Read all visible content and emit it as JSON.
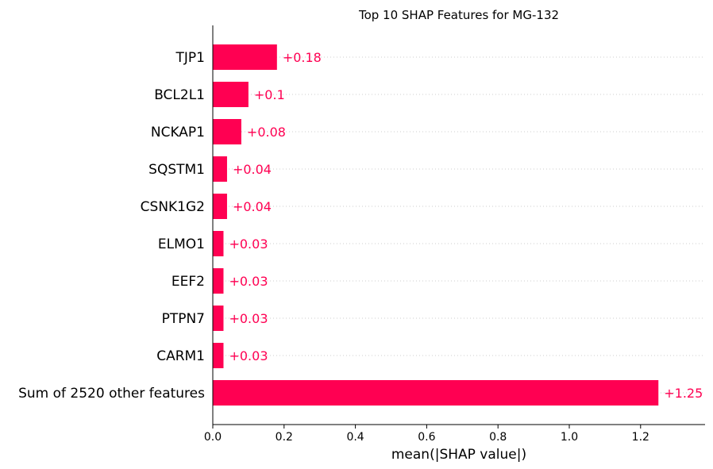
{
  "chart_data": {
    "type": "bar",
    "orientation": "horizontal",
    "title": "Top 10 SHAP Features for MG-132",
    "xlabel": "mean(|SHAP value|)",
    "ylabel": "",
    "categories": [
      "TJP1",
      "BCL2L1",
      "NCKAP1",
      "SQSTM1",
      "CSNK1G2",
      "ELMO1",
      "EEF2",
      "PTPN7",
      "CARM1",
      "Sum of 2520 other features"
    ],
    "values": [
      0.18,
      0.1,
      0.08,
      0.04,
      0.04,
      0.03,
      0.03,
      0.03,
      0.03,
      1.25
    ],
    "value_labels": [
      "+0.18",
      "+0.1",
      "+0.08",
      "+0.04",
      "+0.04",
      "+0.03",
      "+0.03",
      "+0.03",
      "+0.03",
      "+1.25"
    ],
    "xlim": [
      0,
      1.38
    ],
    "xticks": [
      0.0,
      0.2,
      0.4,
      0.6,
      0.8,
      1.0,
      1.2
    ],
    "xtick_labels": [
      "0.0",
      "0.2",
      "0.4",
      "0.6",
      "0.8",
      "1.0",
      "1.2"
    ],
    "grid": "dotted horizontal guide lines",
    "colors": {
      "bar": "#ff0052",
      "label": "#ff0052",
      "guide": "#cccccc",
      "axis": "#000000"
    }
  }
}
